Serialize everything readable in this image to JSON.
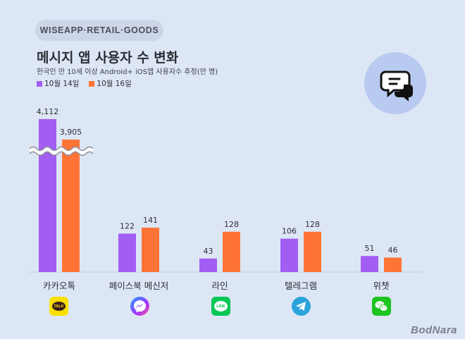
{
  "brand": "WISEAPP·RETAIL·GOODS",
  "colors": {
    "background": "#dde6f5",
    "oct14": "#a25ef2",
    "oct16": "#ff7436",
    "chat_circle": "#b8caf0"
  },
  "watermark": "BodNara",
  "chart_data": {
    "type": "bar",
    "title": "메시지 앱 사용자 수 변화",
    "subtitle": "한국인 만 10세 이상 Android+ iOS앱 사용자수 추정(만 명)",
    "categories": [
      "카카오톡",
      "페이스북 메신저",
      "라인",
      "텔레그램",
      "위챗"
    ],
    "series": [
      {
        "name": "10월 14일",
        "values": [
          4112,
          122,
          43,
          106,
          51
        ]
      },
      {
        "name": "10월 16일",
        "values": [
          3905,
          141,
          128,
          128,
          46
        ]
      }
    ],
    "value_labels": [
      [
        "4,112",
        "122",
        "43",
        "106",
        "51"
      ],
      [
        "3,905",
        "141",
        "128",
        "128",
        "46"
      ]
    ],
    "axis_break": true,
    "legend_position": "top-left",
    "grid": false,
    "app_icons": [
      "kakaotalk-icon",
      "messenger-icon",
      "line-icon",
      "telegram-icon",
      "wechat-icon"
    ],
    "icon_text": {
      "kakaotalk": "TALK",
      "line": "LINE"
    }
  }
}
